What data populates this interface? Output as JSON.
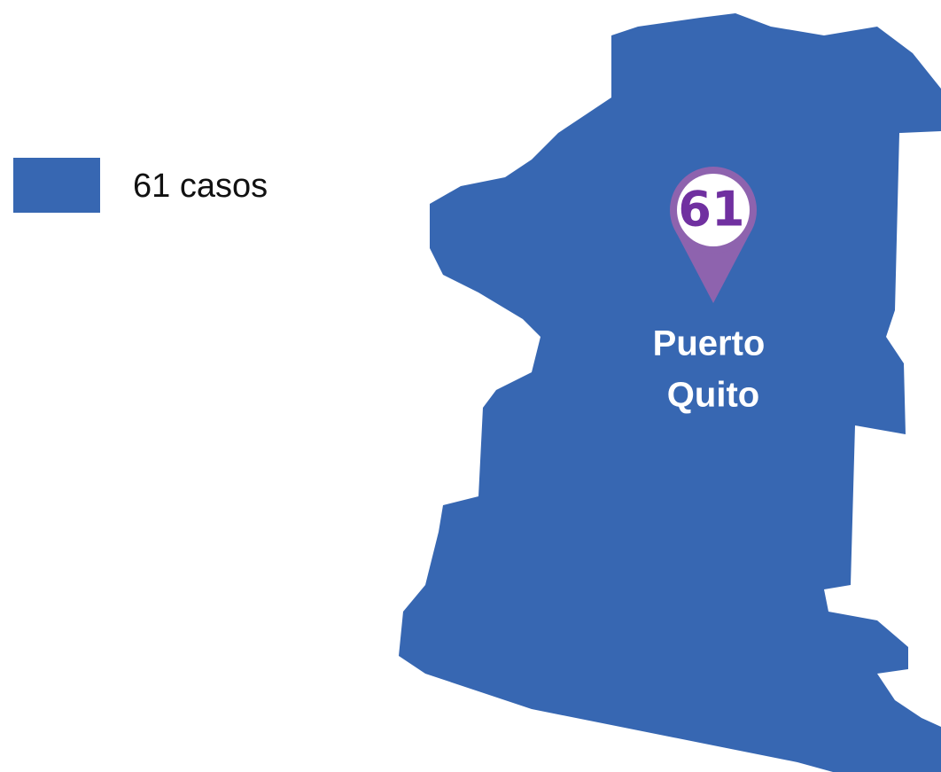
{
  "legend": {
    "label": "61 casos",
    "color": "#3767b2"
  },
  "region": {
    "name_lines": [
      "Puerto",
      "Quito"
    ],
    "count": 61,
    "color": "#3767b2"
  },
  "marker": {
    "color": "#8e63ae",
    "text_color": "#7030a0"
  }
}
